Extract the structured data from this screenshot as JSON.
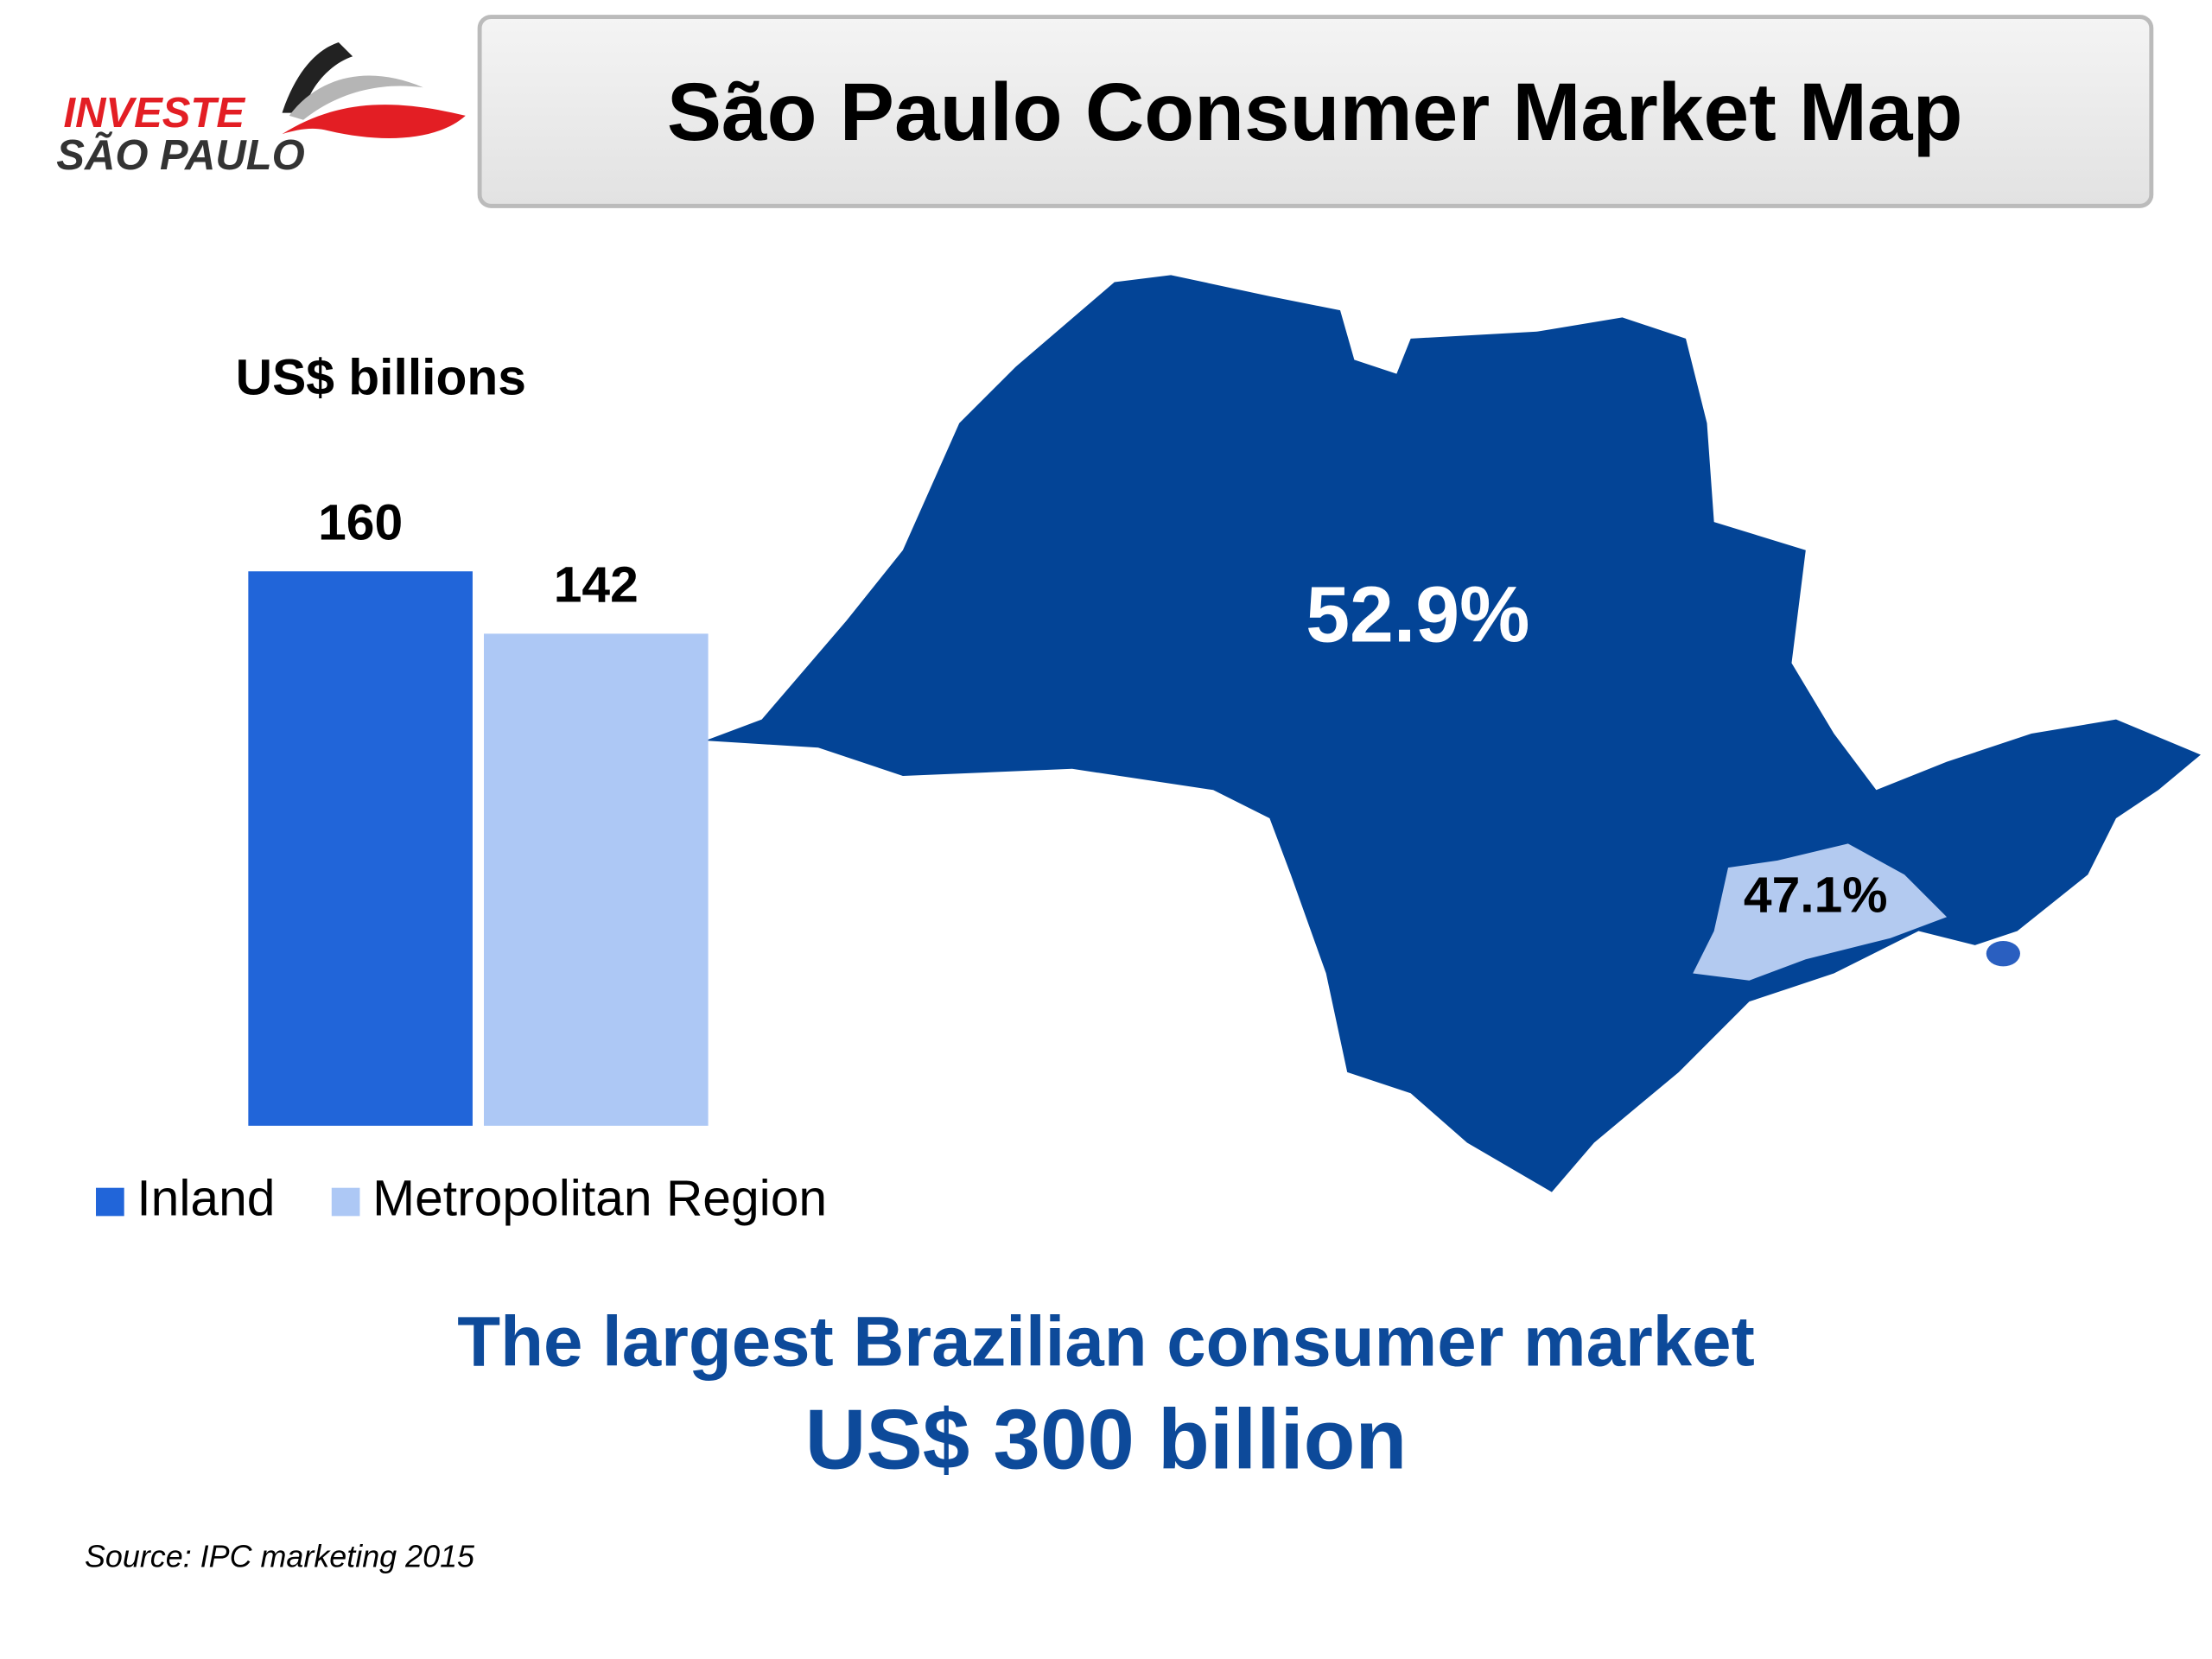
{
  "logo": {
    "line1": "INVESTE",
    "line2": "SÃO PAULO"
  },
  "header": {
    "title": "São Paulo Consumer Market Map"
  },
  "chart_data": {
    "type": "bar",
    "y_label": "US$ billions",
    "categories": [
      null
    ],
    "series": [
      {
        "name": "Inland",
        "color": "#2165d9",
        "values": [
          160
        ]
      },
      {
        "name": "Metropolitan Region",
        "color": "#adc8f5",
        "values": [
          142
        ]
      }
    ],
    "legend": "bottom"
  },
  "map": {
    "labels": [
      "52.9%",
      "47.1%"
    ]
  },
  "footer": {
    "tagline": "The largest Brazilian consumer market",
    "total": "US$ 300 billion",
    "source": "Source: IPC marketing 2015"
  }
}
